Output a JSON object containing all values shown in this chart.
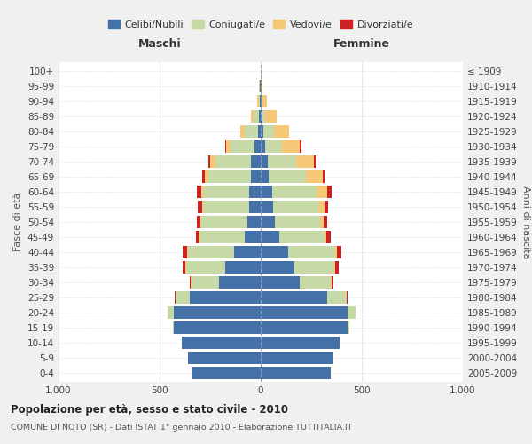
{
  "age_groups": [
    "0-4",
    "5-9",
    "10-14",
    "15-19",
    "20-24",
    "25-29",
    "30-34",
    "35-39",
    "40-44",
    "45-49",
    "50-54",
    "55-59",
    "60-64",
    "65-69",
    "70-74",
    "75-79",
    "80-84",
    "85-89",
    "90-94",
    "95-99",
    "100+"
  ],
  "birth_years": [
    "2005-2009",
    "2000-2004",
    "1995-1999",
    "1990-1994",
    "1985-1989",
    "1980-1984",
    "1975-1979",
    "1970-1974",
    "1965-1969",
    "1960-1964",
    "1955-1959",
    "1950-1954",
    "1945-1949",
    "1940-1944",
    "1935-1939",
    "1930-1934",
    "1925-1929",
    "1920-1924",
    "1915-1919",
    "1910-1914",
    "≤ 1909"
  ],
  "male": {
    "celibi": [
      340,
      360,
      390,
      430,
      430,
      350,
      205,
      175,
      130,
      80,
      65,
      55,
      55,
      50,
      50,
      30,
      15,
      8,
      5,
      3,
      1
    ],
    "coniugati": [
      0,
      0,
      0,
      5,
      30,
      70,
      135,
      195,
      230,
      220,
      230,
      230,
      230,
      210,
      175,
      120,
      65,
      25,
      5,
      2,
      0
    ],
    "vedovi": [
      0,
      0,
      0,
      0,
      0,
      0,
      5,
      5,
      5,
      5,
      5,
      5,
      10,
      15,
      25,
      20,
      20,
      15,
      8,
      2,
      0
    ],
    "divorziati": [
      0,
      0,
      0,
      0,
      0,
      5,
      5,
      10,
      20,
      15,
      15,
      20,
      20,
      15,
      10,
      5,
      0,
      0,
      0,
      0,
      0
    ]
  },
  "female": {
    "nubili": [
      345,
      360,
      390,
      430,
      430,
      330,
      195,
      165,
      135,
      90,
      70,
      60,
      55,
      40,
      35,
      20,
      15,
      8,
      5,
      3,
      1
    ],
    "coniugate": [
      0,
      0,
      0,
      10,
      40,
      95,
      150,
      200,
      235,
      225,
      225,
      225,
      220,
      185,
      140,
      85,
      50,
      15,
      5,
      2,
      0
    ],
    "vedove": [
      0,
      0,
      0,
      0,
      0,
      0,
      5,
      5,
      5,
      10,
      15,
      30,
      55,
      80,
      90,
      90,
      75,
      55,
      20,
      5,
      0
    ],
    "divorziate": [
      0,
      0,
      0,
      0,
      0,
      5,
      10,
      15,
      25,
      20,
      20,
      20,
      20,
      10,
      5,
      5,
      0,
      0,
      0,
      0,
      0
    ]
  },
  "colors": {
    "celibi": "#4472a8",
    "coniugati": "#c8d9a8",
    "vedovi": "#f5c878",
    "divorziati": "#cc2222"
  },
  "xlim": 1000,
  "title": "Popolazione per età, sesso e stato civile - 2010",
  "subtitle": "COMUNE DI NOTO (SR) - Dati ISTAT 1° gennaio 2010 - Elaborazione TUTTITALIA.IT",
  "xlabel_left": "Maschi",
  "xlabel_right": "Femmine",
  "ylabel_left": "Fasce di età",
  "ylabel_right": "Anni di nascita",
  "legend_labels": [
    "Celibi/Nubili",
    "Coniugati/e",
    "Vedovi/e",
    "Divorziati/e"
  ],
  "bg_color": "#f0f0f0",
  "plot_bg": "#ffffff"
}
